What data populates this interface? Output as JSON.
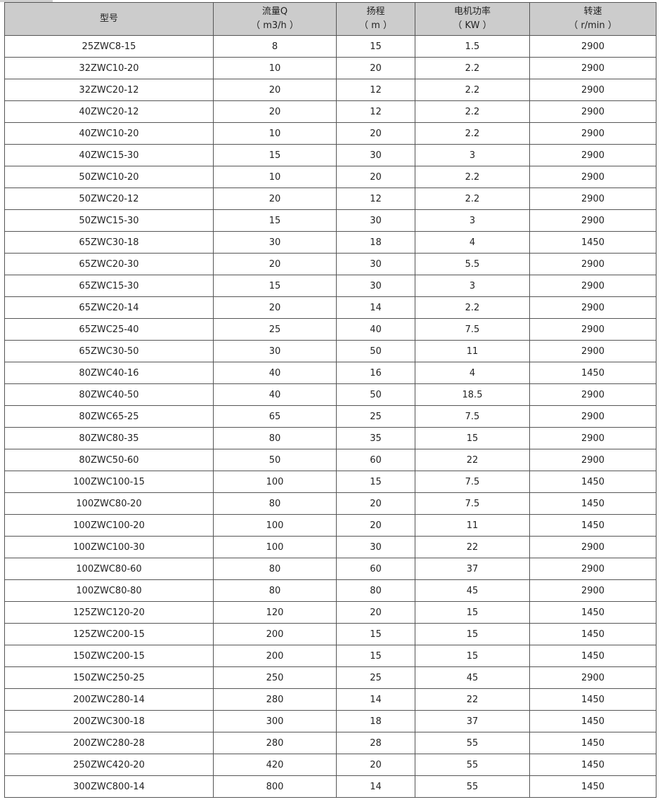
{
  "headers": [
    {
      "name": "型号",
      "unit": ""
    },
    {
      "name": "流量Q",
      "unit": "（ m3/h ）"
    },
    {
      "name": "扬程",
      "unit": "（ m ）"
    },
    {
      "name": "电机功率",
      "unit": "（ KW ）"
    },
    {
      "name": "转速",
      "unit": "（ r/min ）"
    }
  ],
  "rows": [
    [
      "25ZWC8-15",
      "8",
      "15",
      "1.5",
      "2900"
    ],
    [
      "32ZWC10-20",
      "10",
      "20",
      "2.2",
      "2900"
    ],
    [
      "32ZWC20-12",
      "20",
      "12",
      "2.2",
      "2900"
    ],
    [
      "40ZWC20-12",
      "20",
      "12",
      "2.2",
      "2900"
    ],
    [
      "40ZWC10-20",
      "10",
      "20",
      "2.2",
      "2900"
    ],
    [
      "40ZWC15-30",
      "15",
      "30",
      "3",
      "2900"
    ],
    [
      "50ZWC10-20",
      "10",
      "20",
      "2.2",
      "2900"
    ],
    [
      "50ZWC20-12",
      "20",
      "12",
      "2.2",
      "2900"
    ],
    [
      "50ZWC15-30",
      "15",
      "30",
      "3",
      "2900"
    ],
    [
      "65ZWC30-18",
      "30",
      "18",
      "4",
      "1450"
    ],
    [
      "65ZWC20-30",
      "20",
      "30",
      "5.5",
      "2900"
    ],
    [
      "65ZWC15-30",
      "15",
      "30",
      "3",
      "2900"
    ],
    [
      "65ZWC20-14",
      "20",
      "14",
      "2.2",
      "2900"
    ],
    [
      "65ZWC25-40",
      "25",
      "40",
      "7.5",
      "2900"
    ],
    [
      "65ZWC30-50",
      "30",
      "50",
      "11",
      "2900"
    ],
    [
      "80ZWC40-16",
      "40",
      "16",
      "4",
      "1450"
    ],
    [
      "80ZWC40-50",
      "40",
      "50",
      "18.5",
      "2900"
    ],
    [
      "80ZWC65-25",
      "65",
      "25",
      "7.5",
      "2900"
    ],
    [
      "80ZWC80-35",
      "80",
      "35",
      "15",
      "2900"
    ],
    [
      "80ZWC50-60",
      "50",
      "60",
      "22",
      "2900"
    ],
    [
      "100ZWC100-15",
      "100",
      "15",
      "7.5",
      "1450"
    ],
    [
      "100ZWC80-20",
      "80",
      "20",
      "7.5",
      "1450"
    ],
    [
      "100ZWC100-20",
      "100",
      "20",
      "11",
      "1450"
    ],
    [
      "100ZWC100-30",
      "100",
      "30",
      "22",
      "2900"
    ],
    [
      "100ZWC80-60",
      "80",
      "60",
      "37",
      "2900"
    ],
    [
      "100ZWC80-80",
      "80",
      "80",
      "45",
      "2900"
    ],
    [
      "125ZWC120-20",
      "120",
      "20",
      "15",
      "1450"
    ],
    [
      "125ZWC200-15",
      "200",
      "15",
      "15",
      "1450"
    ],
    [
      "150ZWC200-15",
      "200",
      "15",
      "15",
      "1450"
    ],
    [
      "150ZWC250-25",
      "250",
      "25",
      "45",
      "2900"
    ],
    [
      "200ZWC280-14",
      "280",
      "14",
      "22",
      "1450"
    ],
    [
      "200ZWC300-18",
      "300",
      "18",
      "37",
      "1450"
    ],
    [
      "200ZWC280-28",
      "280",
      "28",
      "55",
      "1450"
    ],
    [
      "250ZWC420-20",
      "420",
      "20",
      "55",
      "1450"
    ],
    [
      "300ZWC800-14",
      "800",
      "14",
      "55",
      "1450"
    ]
  ]
}
